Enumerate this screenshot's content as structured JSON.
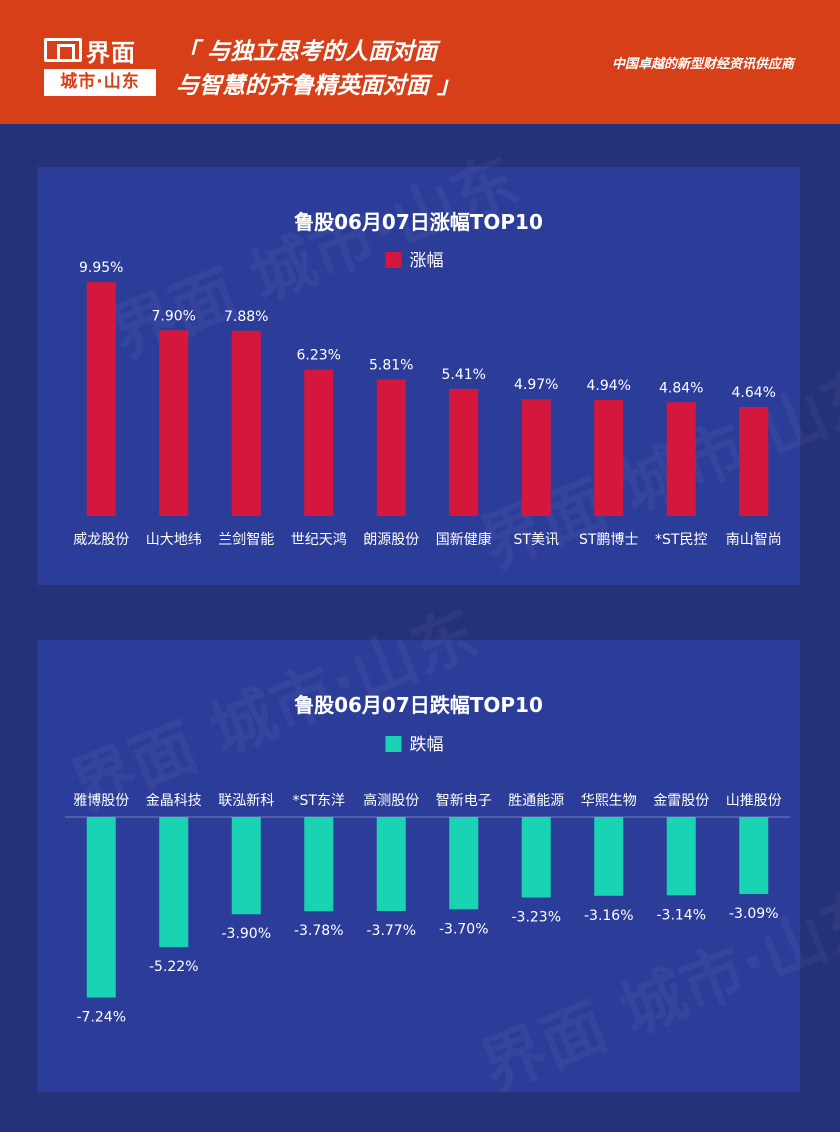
{
  "header": {
    "logo_name": "界面",
    "logo_sub": "城市·山东",
    "slogan_line1": "「 与独立思考的人面对面",
    "slogan_line2": "与智慧的齐鲁精英面对面 」",
    "tagline": "中国卓越的新型财经资讯供应商"
  },
  "watermark": "界面 城市·山东",
  "colors": {
    "header_bg": "#d63f17",
    "panel_bg": "#2c3d99",
    "page_bg": "#24327a",
    "rise_bar": "#d5173e",
    "fall_bar": "#1ad3b3"
  },
  "chart_data": [
    {
      "type": "bar",
      "title": "鲁股06月07日涨幅TOP10",
      "legend": "涨幅",
      "categories": [
        "威龙股份",
        "山大地纬",
        "兰剑智能",
        "世纪天鸿",
        "朗源股份",
        "国新健康",
        "ST美讯",
        "ST鹏博士",
        "*ST民控",
        "南山智尚"
      ],
      "values": [
        9.95,
        7.9,
        7.88,
        6.23,
        5.81,
        5.41,
        4.97,
        4.94,
        4.84,
        4.64
      ],
      "labels": [
        "9.95%",
        "7.90%",
        "7.88%",
        "6.23%",
        "5.81%",
        "5.41%",
        "4.97%",
        "4.94%",
        "4.84%",
        "4.64%"
      ],
      "ylim": [
        0,
        10
      ],
      "grid": false,
      "legend_position": "top-center"
    },
    {
      "type": "bar",
      "title": "鲁股06月07日跌幅TOP10",
      "legend": "跌幅",
      "categories": [
        "雅博股份",
        "金晶科技",
        "联泓新科",
        "*ST东洋",
        "高测股份",
        "智新电子",
        "胜通能源",
        "华熙生物",
        "金雷股份",
        "山推股份"
      ],
      "values": [
        -7.24,
        -5.22,
        -3.9,
        -3.78,
        -3.77,
        -3.7,
        -3.23,
        -3.16,
        -3.14,
        -3.09
      ],
      "labels": [
        "-7.24%",
        "-5.22%",
        "-3.90%",
        "-3.78%",
        "-3.77%",
        "-3.70%",
        "-3.23%",
        "-3.16%",
        "-3.14%",
        "-3.09%"
      ],
      "ylim": [
        -7.5,
        0
      ],
      "grid": false,
      "legend_position": "top-center"
    }
  ]
}
